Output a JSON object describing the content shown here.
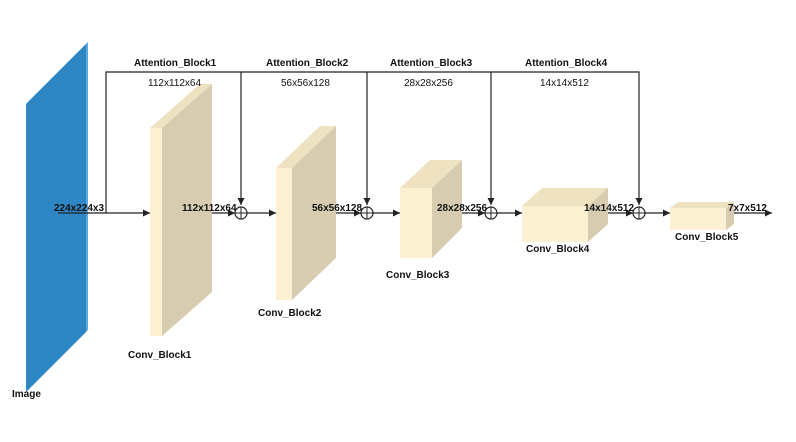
{
  "diagram": {
    "input": {
      "label": "Image",
      "dims": "224x224x3"
    },
    "conv_blocks": [
      {
        "label": "Conv_Block1",
        "out_dims": "112x112x64"
      },
      {
        "label": "Conv_Block2",
        "out_dims": "56x56x128"
      },
      {
        "label": "Conv_Block3",
        "out_dims": "28x28x256"
      },
      {
        "label": "Conv_Block4",
        "out_dims": "14x14x512"
      },
      {
        "label": "Conv_Block5",
        "out_dims": "7x7x512"
      }
    ],
    "attention_blocks": [
      {
        "label": "Attention_Block1",
        "dims": "112x112x64"
      },
      {
        "label": "Attention_Block2",
        "dims": "56x56x128"
      },
      {
        "label": "Attention_Block3",
        "dims": "28x28x256"
      },
      {
        "label": "Attention_Block4",
        "dims": "14x14x512"
      }
    ],
    "colors": {
      "input_front": "#2f86c5",
      "input_side": "#5fa8dc",
      "block_front": "#fbf0d2",
      "block_side": "#d8ccb0",
      "block_top": "#efe2c0",
      "line": "#222222"
    }
  }
}
